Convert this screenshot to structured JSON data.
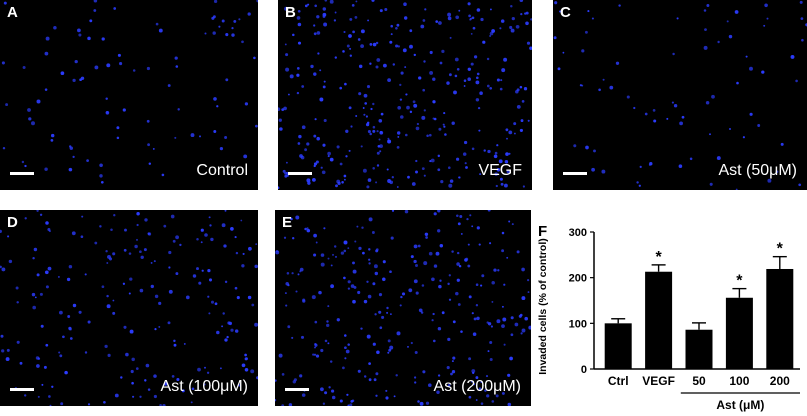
{
  "panels": [
    {
      "letter": "A",
      "caption": "Control",
      "cells": 90
    },
    {
      "letter": "B",
      "caption": "VEGF",
      "cells": 330
    },
    {
      "letter": "C",
      "caption": "Ast (50μM)",
      "cells": 75
    },
    {
      "letter": "D",
      "caption": "Ast (100μM)",
      "cells": 200
    },
    {
      "letter": "E",
      "caption": "Ast (200μM)",
      "cells": 290
    }
  ],
  "colors": {
    "nuclei": "#2b3cff",
    "bar": "#000000",
    "background": "#000000"
  },
  "chart_data": {
    "type": "bar",
    "panel_letter": "F",
    "categories": [
      "Ctrl",
      "VEGF",
      "50",
      "100",
      "200"
    ],
    "values": [
      100,
      213,
      86,
      156,
      219
    ],
    "errors": [
      10,
      15,
      15,
      20,
      27
    ],
    "significance": [
      "",
      "*",
      "",
      "*",
      "*"
    ],
    "ylabel": "Invaded cells (% of control)",
    "group_label": "Ast (μM)",
    "ylim": [
      0,
      300
    ],
    "yticks": [
      "0",
      "100",
      "200",
      "300"
    ],
    "grid": false
  }
}
